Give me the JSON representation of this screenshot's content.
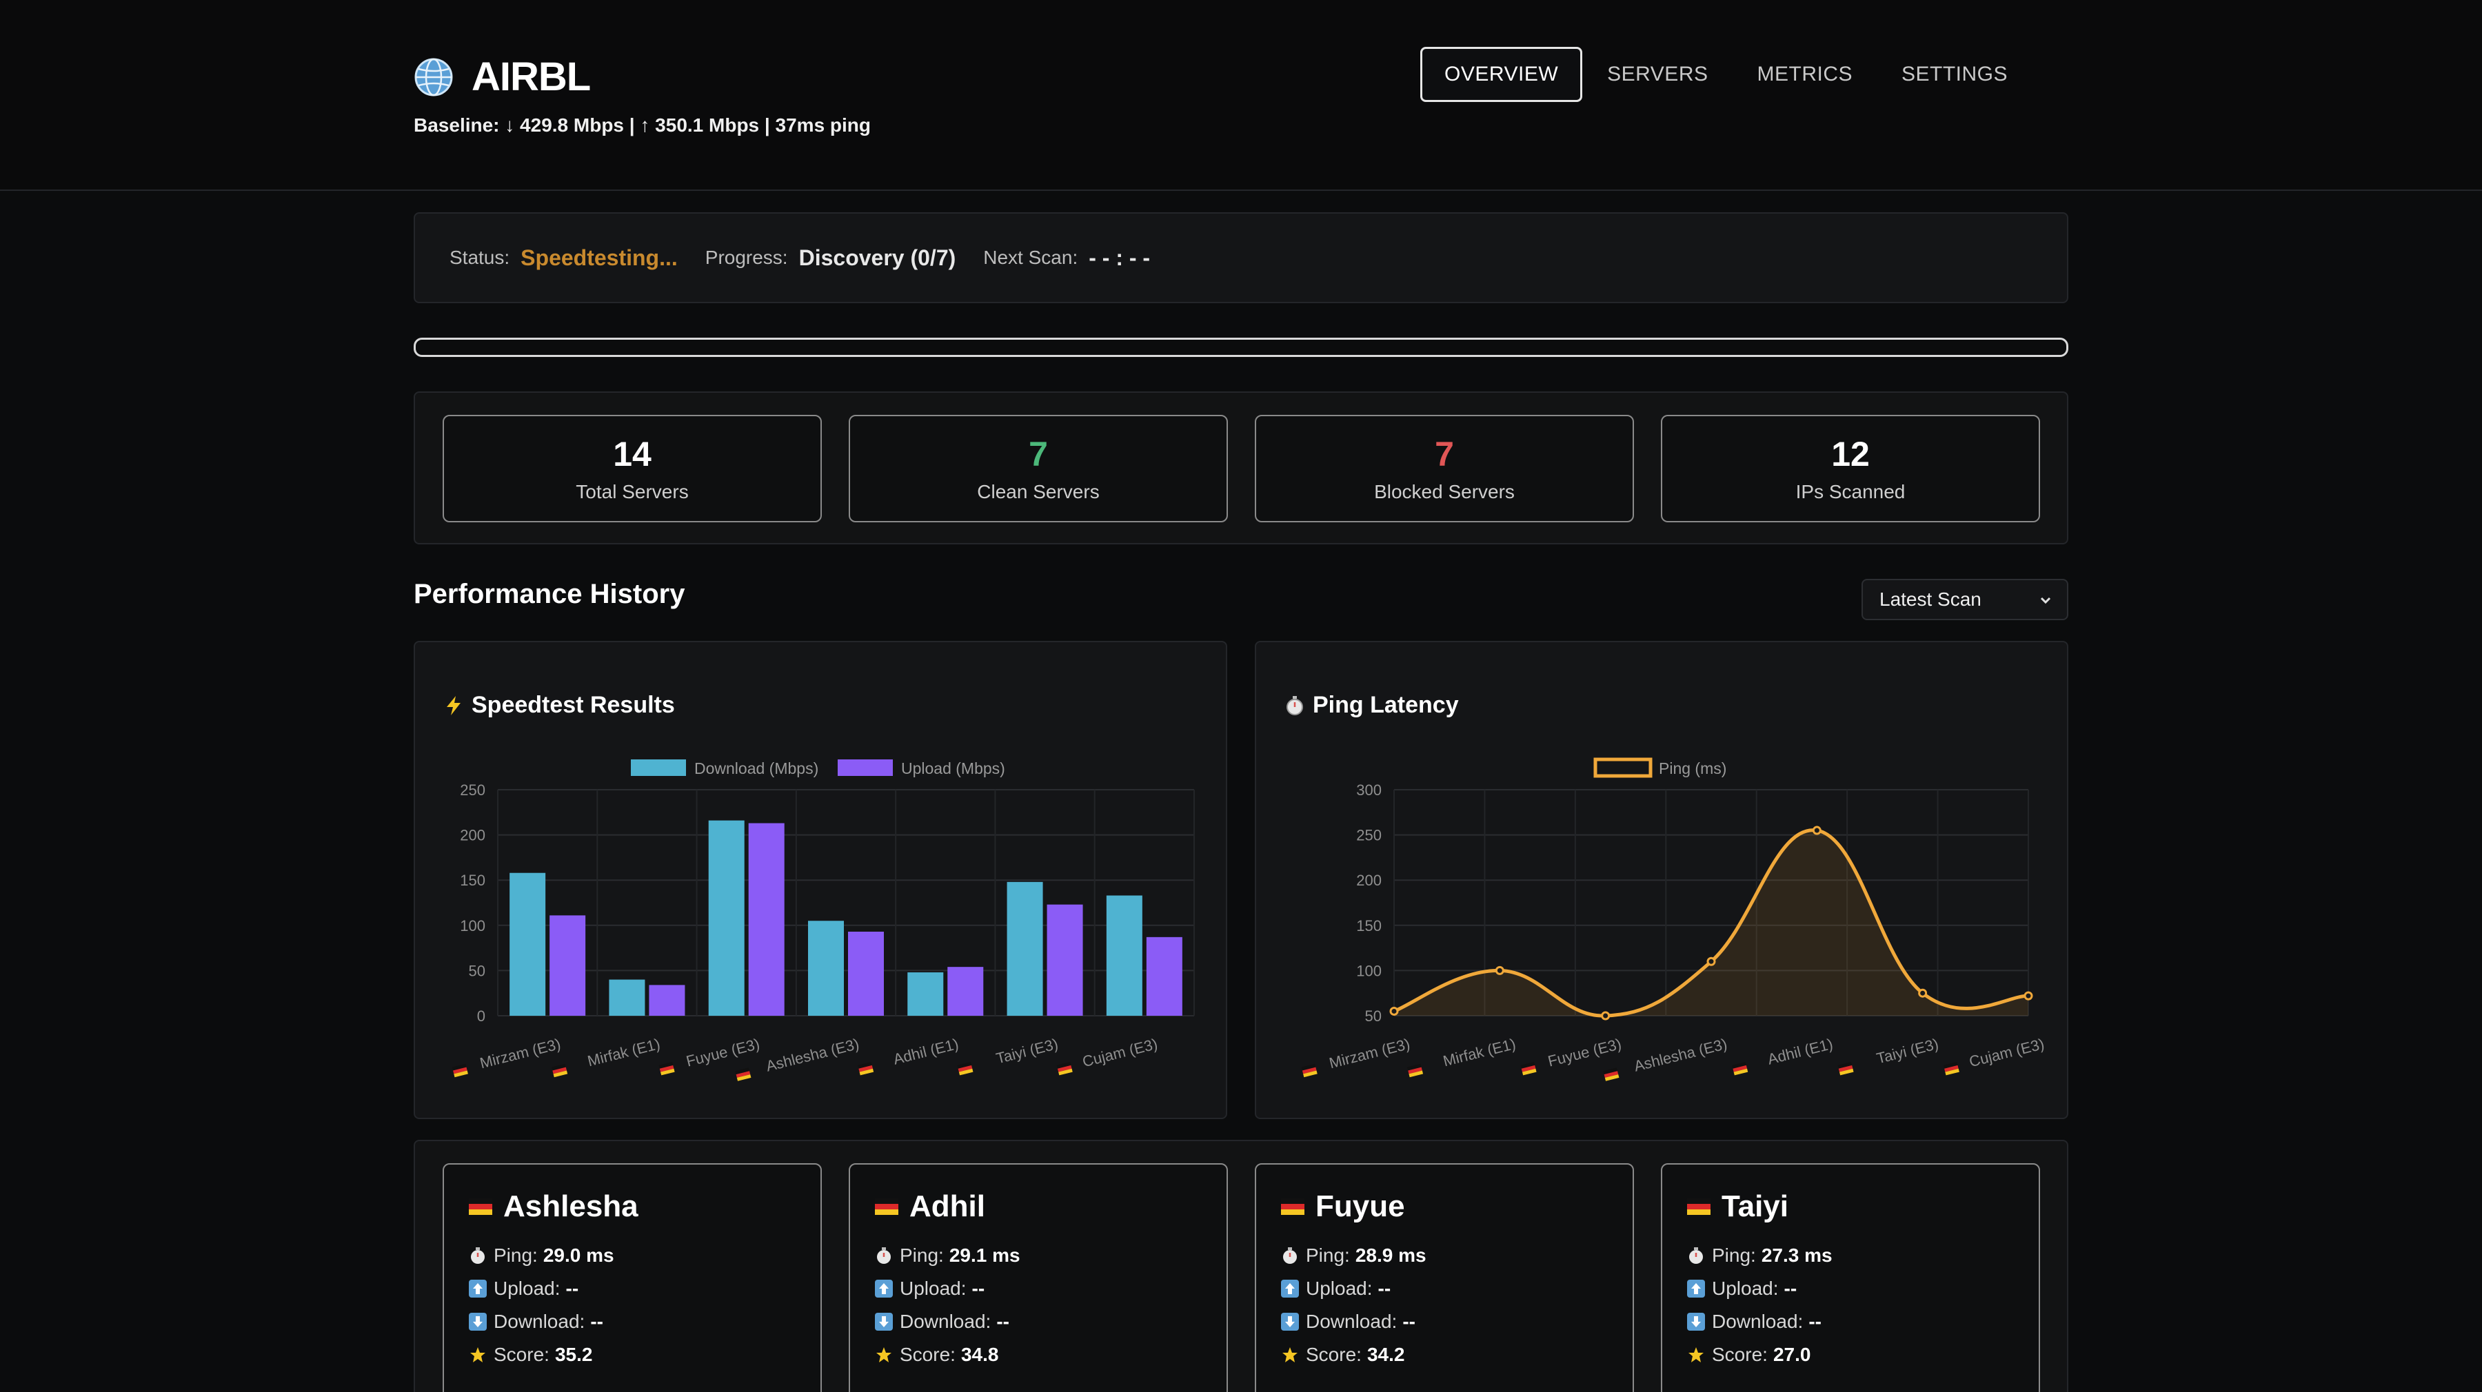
{
  "app": {
    "title": "AIRBL",
    "baseline": "Baseline: ↓ 429.8 Mbps | ↑ 350.1 Mbps | 37ms ping",
    "icon": "globe-icon"
  },
  "nav": {
    "items": [
      {
        "label": "OVERVIEW",
        "active": true
      },
      {
        "label": "SERVERS",
        "active": false
      },
      {
        "label": "METRICS",
        "active": false
      },
      {
        "label": "SETTINGS",
        "active": false
      }
    ]
  },
  "status": {
    "status_label": "Status:",
    "status_value": "Speedtesting...",
    "progress_label": "Progress:",
    "progress_value": "Discovery (0/7)",
    "next_label": "Next Scan:",
    "next_value": "- - : - -",
    "progress_fraction": 0
  },
  "stats": [
    {
      "value": "14",
      "label": "Total Servers",
      "color": "#ffffff"
    },
    {
      "value": "7",
      "label": "Clean Servers",
      "color": "#4cb87a"
    },
    {
      "value": "7",
      "label": "Blocked Servers",
      "color": "#e05656"
    },
    {
      "value": "12",
      "label": "IPs Scanned",
      "color": "#ffffff"
    }
  ],
  "history": {
    "title": "Performance History",
    "select_value": "Latest Scan"
  },
  "chart_data": [
    {
      "type": "bar",
      "title": "Speedtest Results",
      "categories": [
        "Mirzam (E3)",
        "Mirfak (E1)",
        "Fuyue (E3)",
        "Ashlesha (E3)",
        "Adhil (E1)",
        "Taiyi (E3)",
        "Cujam (E3)"
      ],
      "series": [
        {
          "name": "Download (Mbps)",
          "color": "#4fb3d1",
          "values": [
            158,
            40,
            216,
            105,
            48,
            148,
            133
          ]
        },
        {
          "name": "Upload (Mbps)",
          "color": "#8b5cf6",
          "values": [
            111,
            34,
            213,
            93,
            54,
            123,
            87
          ]
        }
      ],
      "ylim": [
        0,
        250
      ],
      "yticks": [
        "0",
        "50",
        "100",
        "150",
        "200",
        "250"
      ],
      "legend": "top",
      "grid": true
    },
    {
      "type": "line",
      "title": "Ping Latency",
      "categories": [
        "Mirzam (E3)",
        "Mirfak (E1)",
        "Fuyue (E3)",
        "Ashlesha (E3)",
        "Adhil (E1)",
        "Taiyi (E3)",
        "Cujam (E3)"
      ],
      "series": [
        {
          "name": "Ping (ms)",
          "color": "#f0a83a",
          "values": [
            55,
            100,
            50,
            110,
            255,
            75,
            72
          ]
        }
      ],
      "ylim": [
        50,
        300
      ],
      "yticks": [
        "50",
        "100",
        "150",
        "200",
        "250",
        "300"
      ],
      "legend": "top",
      "grid": true,
      "fill": true
    }
  ],
  "servers": [
    {
      "name": "Ashlesha",
      "ping_label": "Ping:",
      "ping": "29.0 ms",
      "upload_label": "Upload:",
      "upload": "--",
      "download_label": "Download:",
      "download": "--",
      "score_label": "Score:",
      "score": "35.2"
    },
    {
      "name": "Adhil",
      "ping_label": "Ping:",
      "ping": "29.1 ms",
      "upload_label": "Upload:",
      "upload": "--",
      "download_label": "Download:",
      "download": "--",
      "score_label": "Score:",
      "score": "34.8"
    },
    {
      "name": "Fuyue",
      "ping_label": "Ping:",
      "ping": "28.9 ms",
      "upload_label": "Upload:",
      "upload": "--",
      "download_label": "Download:",
      "download": "--",
      "score_label": "Score:",
      "score": "34.2"
    },
    {
      "name": "Taiyi",
      "ping_label": "Ping:",
      "ping": "27.3 ms",
      "upload_label": "Upload:",
      "upload": "--",
      "download_label": "Download:",
      "download": "--",
      "score_label": "Score:",
      "score": "27.0"
    }
  ]
}
